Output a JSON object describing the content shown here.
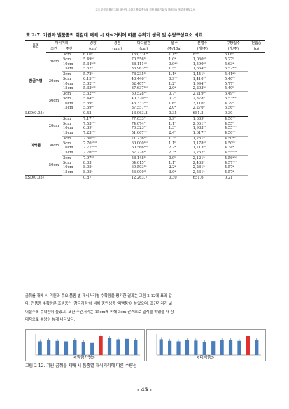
{
  "header": {
    "text": "고추 우량묘(플러그묘) 생산 및 수확기 품질 향상을 위한 육묘기술 및 재배기술 개발 최종보고서"
  },
  "table": {
    "title": "표 2-7. 기원과 벨품종의 쥐갈대 재배 시 재식거리에 따른 수확기 생육 및 수량구성요소 비교",
    "headers": {
      "variety": "품종",
      "spacing": "재식거리",
      "row_sp": "조간",
      "plant_sp": "주간",
      "cols": [
        "경장",
        "경경",
        "마디절간",
        "엽수",
        "분얼수",
        "구당립수",
        "천립중"
      ],
      "units": [
        "(cm)",
        "(mm)",
        "(cm)",
        "(주/10a)",
        "(개/주)",
        "(개/주)",
        "(g)"
      ]
    },
    "groups": [
      {
        "variety": "참금가평",
        "blocks": [
          {
            "row": "20cm",
            "rows": [
              [
                "3cm",
                "6.10ᵇ",
                "",
                "133,330ᵃ",
                "1.1ᵃᵇ",
                "85ᵇ",
                "5.06ᵇ"
              ],
              [
                "5cm",
                "5.49ᵇᶜ",
                "",
                "70,556ᵇ",
                "1.0ᵃ",
                "1,060ᵃᵇ",
                "5.27ᵇ"
              ],
              [
                "10cm",
                "5.34ᵇᶜᵈ",
                "",
                "38,111ᶜᵈ",
                "0.9ᵃᵇ",
                "1,590ᵃᵇ",
                "5.63ᵃ"
              ],
              [
                "15cm",
                "5.52ᵇ",
                "",
                "36,963ᵃᵇᶜ",
                "1.5ᵇ",
                "1,654ᵃᵇ",
                "5.52ᵃᵇᶜ"
              ]
            ]
          },
          {
            "row": "30cm",
            "rows": [
              [
                "3cm",
                "5.72ᵇ",
                "",
                "78,235ᵇ",
                "1.1ᵃ",
                "1,441ᵇ",
                "5.41ᵃᵇ"
              ],
              [
                "5cm",
                "6.15ᵃᵇᶜ",
                "",
                "43,446ᵃᵇ",
                "0.9ᵃᵇ",
                "1,410ᵃᵇ",
                "5.40ᵇᶜ"
              ],
              [
                "10cm",
                "5.32ᵇᶜᵈ",
                "",
                "32,407ᵇ",
                "1.2ᵇ",
                "1,994ᵃᵇ",
                "5.77ᵇ"
              ],
              [
                "15cm",
                "5.33ᵇᶜᵈ",
                "",
                "37,637ᵇᶜᵈ",
                "2.0ᵃ",
                "2,203ᵇᶜ",
                "5.40ᵇ"
              ]
            ]
          },
          {
            "row": "50cm",
            "rows": [
              [
                "3cm",
                "5.32ᵇᶜᵈ",
                "",
                "50,528ᵇᶜ",
                "0.7ᵇ",
                "2,219ᵇᶜ",
                "5.49ᵇᶜ"
              ],
              [
                "5cm",
                "5.44ᵇᶜ",
                "",
                "40,370ᵇᶜᵈ",
                "0.7ᵇ",
                "2,378ᵇ",
                "5.53ᵃᵇᶜ"
              ],
              [
                "10cm",
                "5.69ᵇ",
                "",
                "43,333ᵇᶜᵈ",
                "1.6ᵇ",
                "3,116ᵇ",
                "4.79ᵇ"
              ],
              [
                "15cm",
                "5.59ᵇᶜ",
                "",
                "37,557ᵇᶜᵈ",
                "2.0ᵃ",
                "2,270ᵇ",
                "5.56ᵇᶜ"
              ]
            ]
          }
        ],
        "lsd": [
          "0.43",
          "",
          "13,063.3",
          "0.35",
          "681.3",
          "0.30"
        ]
      },
      {
        "variety": "미백품",
        "blocks": [
          {
            "row": "20cm",
            "rows": [
              [
                "3cm",
                "7.17ᵃᵈ",
                "",
                "77,033ᵇ",
                "0.9ᵇ",
                "1,639ᵇ",
                "4.50ᵃᵇ"
              ],
              [
                "5cm",
                "7.53ᵃᵇᶜ",
                "",
                "74,074ᵇ",
                "1.1ᵃ",
                "2,061ᵃᵇ",
                "4.55ᵇ"
              ],
              [
                "10cm",
                "6.39ᵇ",
                "",
                "70,323ᵇᶜ",
                "1.3ᵇ",
                "1,933ᵃᵇ",
                "4.55ᵃᵇᶜ"
              ],
              [
                "15cm",
                "7.23ᵃᵇᶜ",
                "",
                "51,667ᶜᵈ",
                "2.4ᵇ",
                "1,617ᵃᵇ",
                "4.50ᵃᵇ"
              ]
            ]
          },
          {
            "row": "30cm",
            "rows": [
              [
                "3cm",
                "7.50ᵃᵇᶜ",
                "",
                "71,236ᵇᶜ",
                "1.3ᵇ",
                "1,231ᵇ",
                "4.50ᵃᵇ"
              ],
              [
                "5cm",
                "7.76ᵃᵇᶜᵈ",
                "",
                "60,000ᵇᶜᵈ",
                "1.1ᵇ",
                "1,178ᵃᵇ",
                "4.50ᵇᶜ"
              ],
              [
                "10cm",
                "7.77ᵃᵇᶜᵈ",
                "",
                "60,566ᵃᵇᶜ",
                "2.2ᵃ",
                "1,713ᵃᵇ",
                "4.34ᵃ"
              ],
              [
                "15cm",
                "7.76ᵃᵇᶜᵈ",
                "",
                "57,778ᵃ",
                "2.3ᵃ",
                "2,252ᵇ",
                "4.55ᵇᶜᵈ"
              ]
            ]
          },
          {
            "row": "50cm",
            "rows": [
              [
                "3cm",
                "7.97ᵃᵇ",
                "",
                "58,148ᵇ",
                "0.9ᵇ",
                "2,121ᵇ",
                "4.56ᵃᵇᶜ"
              ],
              [
                "5cm",
                "8.03ᵃ",
                "",
                "64,615ᵇ",
                "1.1ᵇ",
                "2,435ᵇ",
                "4.57ᵃᵇᶜ"
              ],
              [
                "10cm",
                "8.05ᵃ",
                "",
                "60,503ᵇᶜ",
                "2.2ᵃ",
                "2,281ᵇ",
                "4.57ᵃ"
              ],
              [
                "15cm",
                "8.05ᵃ",
                "",
                "56,000ᵈ",
                "3.0ᵃ",
                "2,531ᵃ",
                "4.57ᵃ"
              ]
            ]
          }
        ],
        "lsd": [
          "0.87",
          "",
          "12,263.7",
          "0.30",
          "651.6",
          "0.21"
        ]
      }
    ],
    "lsd_label": "LSD(0.05)"
  },
  "paragraph": [
    "곰취를 재배 시 기원과 주요 품종 별 재식거리별 수확량을 평가한 결과는 그림 2-12에 표와 같",
    "다. 전품종 수확량은 조생종인 '참금가평'에 비해 중만생종 '미백품'이 높았으며, 조간거리가 넓",
    "어질수록 수확량이 높았고, 또한 주간거리는 15cm에 비해 3cm 간격으로 밀식을 하였을 때 상",
    "대적으로 수량이 높게 나타났다."
  ],
  "figure": {
    "left_label": "<참금가평>",
    "right_label": "<미백품>",
    "caption": "그림 2-12. 기원 곰취를 재배 시 품종별 재식거리에 따른 수량성",
    "colors": {
      "bar": "#4a7ebb",
      "highlight": "#e03030"
    },
    "chart_data": [
      {
        "type": "bar",
        "values": [
          52,
          58,
          54,
          52,
          56,
          50,
          46,
          72,
          64,
          60,
          62,
          58
        ],
        "highlight_index": 7
      },
      {
        "type": "bar",
        "values": [
          60,
          54,
          52,
          56,
          55,
          50,
          53,
          57,
          58,
          54,
          72,
          58
        ],
        "highlight_index": 10
      }
    ]
  },
  "page_number": "- 45 -"
}
